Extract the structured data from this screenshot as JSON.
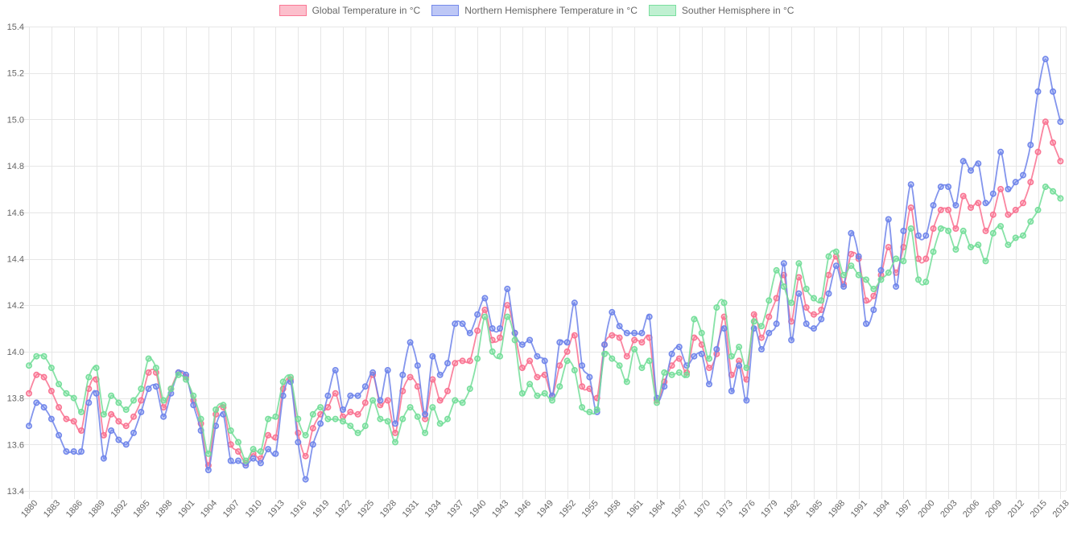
{
  "chart_data": {
    "type": "line",
    "title": "",
    "xlabel": "",
    "ylabel": "",
    "legend_position": "top",
    "grid": true,
    "x_tick_step": 3,
    "y_axis": {
      "min": 13.4,
      "max": 15.4,
      "step": 0.2,
      "tick_labels": [
        "13.4",
        "13.6",
        "13.8",
        "14.0",
        "14.2",
        "14.4",
        "14.6",
        "14.8",
        "15.0",
        "15.2",
        "15.4"
      ]
    },
    "years": [
      1880,
      1881,
      1882,
      1883,
      1884,
      1885,
      1886,
      1887,
      1888,
      1889,
      1890,
      1891,
      1892,
      1893,
      1894,
      1895,
      1896,
      1897,
      1898,
      1899,
      1900,
      1901,
      1902,
      1903,
      1904,
      1905,
      1906,
      1907,
      1908,
      1909,
      1910,
      1911,
      1912,
      1913,
      1914,
      1915,
      1916,
      1917,
      1918,
      1919,
      1920,
      1921,
      1922,
      1923,
      1924,
      1925,
      1926,
      1927,
      1928,
      1929,
      1930,
      1931,
      1932,
      1933,
      1934,
      1935,
      1936,
      1937,
      1938,
      1939,
      1940,
      1941,
      1942,
      1943,
      1944,
      1945,
      1946,
      1947,
      1948,
      1949,
      1950,
      1951,
      1952,
      1953,
      1954,
      1955,
      1956,
      1957,
      1958,
      1959,
      1960,
      1961,
      1962,
      1963,
      1964,
      1965,
      1966,
      1967,
      1968,
      1969,
      1970,
      1971,
      1972,
      1973,
      1974,
      1975,
      1976,
      1977,
      1978,
      1979,
      1980,
      1981,
      1982,
      1983,
      1984,
      1985,
      1986,
      1987,
      1988,
      1989,
      1990,
      1991,
      1992,
      1993,
      1994,
      1995,
      1996,
      1997,
      1998,
      1999,
      2000,
      2001,
      2002,
      2003,
      2004,
      2005,
      2006,
      2007,
      2008,
      2009,
      2010,
      2011,
      2012,
      2013,
      2014,
      2015,
      2016,
      2017,
      2018
    ],
    "series": [
      {
        "name": "Global Temperature in °C",
        "color": "#f9708f",
        "values": [
          13.82,
          13.9,
          13.89,
          13.83,
          13.76,
          13.71,
          13.7,
          13.66,
          13.84,
          13.88,
          13.64,
          13.73,
          13.7,
          13.68,
          13.72,
          13.79,
          13.91,
          13.91,
          13.76,
          13.84,
          13.91,
          13.89,
          13.79,
          13.69,
          13.51,
          13.73,
          13.76,
          13.6,
          13.57,
          13.52,
          13.56,
          13.54,
          13.64,
          13.63,
          13.84,
          13.88,
          13.65,
          13.55,
          13.67,
          13.73,
          13.76,
          13.82,
          13.72,
          13.74,
          13.73,
          13.78,
          13.9,
          13.77,
          13.79,
          13.65,
          13.83,
          13.89,
          13.85,
          13.71,
          13.88,
          13.79,
          13.83,
          13.95,
          13.96,
          13.96,
          14.09,
          14.18,
          14.05,
          14.06,
          14.2,
          14.08,
          13.93,
          13.96,
          13.89,
          13.9,
          13.81,
          13.94,
          14.0,
          14.07,
          13.85,
          13.84,
          13.8,
          14.03,
          14.07,
          14.06,
          13.98,
          14.05,
          14.04,
          14.06,
          13.79,
          13.87,
          13.94,
          13.97,
          13.91,
          14.06,
          14.03,
          13.93,
          13.99,
          14.15,
          13.9,
          13.96,
          13.88,
          14.16,
          14.06,
          14.15,
          14.23,
          14.33,
          14.13,
          14.32,
          14.19,
          14.16,
          14.18,
          14.33,
          14.41,
          14.29,
          14.42,
          14.4,
          14.22,
          14.24,
          14.33,
          14.45,
          14.34,
          14.45,
          14.62,
          14.4,
          14.4,
          14.53,
          14.61,
          14.61,
          14.53,
          14.67,
          14.62,
          14.64,
          14.52,
          14.59,
          14.7,
          14.59,
          14.61,
          14.64,
          14.73,
          14.86,
          14.99,
          14.9,
          14.82
        ]
      },
      {
        "name": "Northern Hemisphere Temperature in °C",
        "color": "#6d83ea",
        "values": [
          13.68,
          13.78,
          13.76,
          13.71,
          13.64,
          13.57,
          13.57,
          13.57,
          13.78,
          13.82,
          13.54,
          13.66,
          13.62,
          13.6,
          13.65,
          13.74,
          13.84,
          13.85,
          13.72,
          13.82,
          13.91,
          13.9,
          13.77,
          13.66,
          13.49,
          13.68,
          13.73,
          13.53,
          13.53,
          13.51,
          13.54,
          13.52,
          13.58,
          13.56,
          13.81,
          13.87,
          13.61,
          13.45,
          13.6,
          13.69,
          13.81,
          13.92,
          13.75,
          13.81,
          13.81,
          13.85,
          13.91,
          13.79,
          13.92,
          13.69,
          13.9,
          14.04,
          13.94,
          13.73,
          13.98,
          13.9,
          13.95,
          14.12,
          14.12,
          14.08,
          14.16,
          14.23,
          14.1,
          14.1,
          14.27,
          14.08,
          14.03,
          14.05,
          13.98,
          13.96,
          13.81,
          14.04,
          14.04,
          14.21,
          13.94,
          13.89,
          13.74,
          14.03,
          14.17,
          14.11,
          14.08,
          14.08,
          14.08,
          14.15,
          13.8,
          13.85,
          13.99,
          14.02,
          13.94,
          13.98,
          13.99,
          13.86,
          14.01,
          14.1,
          13.83,
          13.94,
          13.79,
          14.1,
          14.01,
          14.08,
          14.12,
          14.38,
          14.05,
          14.25,
          14.12,
          14.1,
          14.14,
          14.25,
          14.37,
          14.28,
          14.51,
          14.41,
          14.12,
          14.18,
          14.35,
          14.57,
          14.28,
          14.52,
          14.72,
          14.5,
          14.5,
          14.63,
          14.71,
          14.71,
          14.63,
          14.82,
          14.78,
          14.81,
          14.64,
          14.68,
          14.86,
          14.7,
          14.73,
          14.76,
          14.89,
          15.12,
          15.26,
          15.12,
          14.99
        ]
      },
      {
        "name": "Souther Hemisphere in °C",
        "color": "#72dd98",
        "values": [
          13.94,
          13.98,
          13.98,
          13.93,
          13.86,
          13.82,
          13.8,
          13.74,
          13.89,
          13.93,
          13.73,
          13.81,
          13.78,
          13.75,
          13.79,
          13.84,
          13.97,
          13.93,
          13.79,
          13.84,
          13.9,
          13.88,
          13.81,
          13.71,
          13.56,
          13.75,
          13.77,
          13.66,
          13.61,
          13.53,
          13.58,
          13.57,
          13.71,
          13.72,
          13.87,
          13.89,
          13.71,
          13.64,
          13.73,
          13.76,
          13.71,
          13.71,
          13.7,
          13.68,
          13.65,
          13.68,
          13.79,
          13.71,
          13.7,
          13.61,
          13.71,
          13.76,
          13.72,
          13.65,
          13.76,
          13.69,
          13.71,
          13.79,
          13.78,
          13.84,
          13.97,
          14.15,
          14.0,
          13.98,
          14.15,
          14.05,
          13.82,
          13.86,
          13.81,
          13.82,
          13.79,
          13.85,
          13.96,
          13.92,
          13.76,
          13.74,
          13.75,
          13.99,
          13.97,
          13.94,
          13.87,
          14.01,
          13.93,
          13.96,
          13.78,
          13.91,
          13.9,
          13.91,
          13.9,
          14.14,
          14.08,
          13.97,
          14.19,
          14.21,
          13.98,
          14.02,
          13.93,
          14.13,
          14.11,
          14.22,
          14.35,
          14.28,
          14.21,
          14.38,
          14.27,
          14.23,
          14.22,
          14.41,
          14.43,
          14.33,
          14.37,
          14.33,
          14.31,
          14.27,
          14.31,
          14.34,
          14.4,
          14.39,
          14.53,
          14.31,
          14.3,
          14.43,
          14.53,
          14.52,
          14.44,
          14.52,
          14.45,
          14.46,
          14.39,
          14.51,
          14.54,
          14.46,
          14.49,
          14.5,
          14.56,
          14.61,
          14.71,
          14.69,
          14.66
        ]
      }
    ]
  }
}
